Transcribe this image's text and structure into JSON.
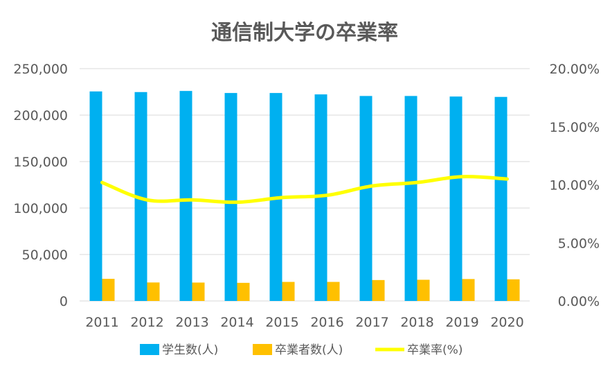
{
  "chart_data": {
    "type": "bar",
    "title": "通信制大学の卒業率",
    "categories": [
      "2011",
      "2012",
      "2013",
      "2014",
      "2015",
      "2016",
      "2017",
      "2018",
      "2019",
      "2020"
    ],
    "series": [
      {
        "name": "学生数(人)",
        "type": "bar",
        "axis": "left",
        "color": "#00b0f0",
        "values": [
          225500,
          224800,
          226000,
          223800,
          223800,
          222300,
          220600,
          220600,
          220000,
          219600
        ]
      },
      {
        "name": "卒業者数(人)",
        "type": "bar",
        "axis": "left",
        "color": "#ffc000",
        "values": [
          23800,
          19900,
          19800,
          19500,
          20500,
          20500,
          22500,
          22800,
          23600,
          23300
        ]
      },
      {
        "name": "卒業率(%)",
        "type": "line",
        "axis": "right",
        "color": "#ffff00",
        "values": [
          10.2,
          8.7,
          8.7,
          8.5,
          8.9,
          9.1,
          9.9,
          10.2,
          10.7,
          10.5
        ]
      }
    ],
    "y_left": {
      "min": 0,
      "max": 250000,
      "ticks": [
        "0",
        "50,000",
        "100,000",
        "150,000",
        "200,000",
        "250,000"
      ]
    },
    "y_right": {
      "min": 0,
      "max": 20,
      "ticks": [
        "0.00%",
        "5.00%",
        "10.00%",
        "15.00%",
        "20.00%"
      ]
    },
    "grid": true,
    "legend": "bottom"
  }
}
